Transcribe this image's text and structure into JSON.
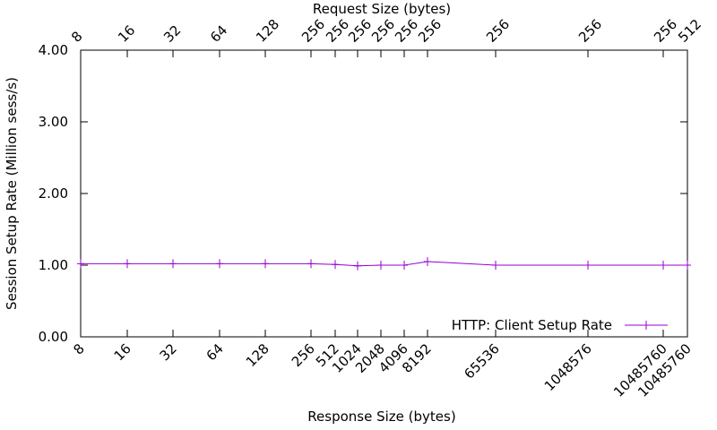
{
  "chart_data": {
    "type": "line",
    "title": "",
    "xlabel": "Response Size (bytes)",
    "x2label": "Request Size (bytes)",
    "ylabel": "Session Setup Rate (Million sess/s)",
    "ylim": [
      0,
      4
    ],
    "yticks": [
      "0.00",
      "1.00",
      "2.00",
      "3.00",
      "4.00"
    ],
    "grid": false,
    "legend_position": "bottom-right",
    "response_sizes": [
      "8",
      "16",
      "32",
      "64",
      "128",
      "256",
      "512",
      "1024",
      "2048",
      "4096",
      "8192",
      "65536",
      "1048576",
      "10485760",
      "10485760"
    ],
    "request_sizes": [
      "8",
      "16",
      "32",
      "64",
      "128",
      "256",
      "256",
      "256",
      "256",
      "256",
      "256",
      "256",
      "256",
      "256",
      "512"
    ],
    "series": [
      {
        "name": "HTTP: Client Setup Rate",
        "color": "#9400d3",
        "values": [
          1.02,
          1.02,
          1.02,
          1.02,
          1.02,
          1.02,
          1.01,
          0.99,
          1.0,
          1.0,
          1.05,
          1.0,
          1.0,
          1.0,
          1.0
        ]
      }
    ]
  }
}
